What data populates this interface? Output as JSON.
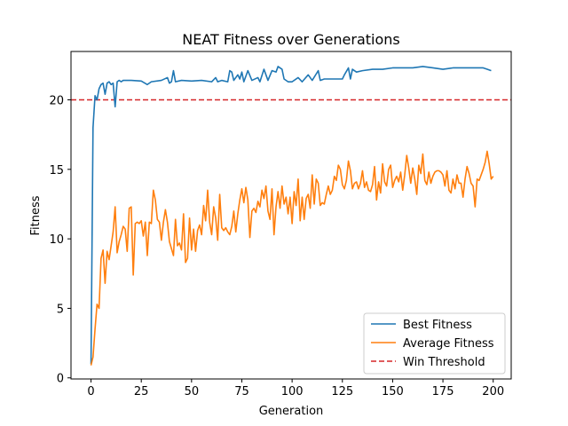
{
  "chart_data": {
    "type": "line",
    "title": "NEAT Fitness over Generations",
    "xlabel": "Generation",
    "ylabel": "Fitness",
    "xlim": [
      -9.95,
      208.95
    ],
    "ylim": [
      -0.08,
      23.48
    ],
    "xticks": [
      0,
      25,
      50,
      75,
      100,
      125,
      150,
      175,
      200
    ],
    "yticks": [
      0,
      5,
      10,
      15,
      20
    ],
    "grid": false,
    "legend_position": "lower-right",
    "threshold": {
      "name": "Win Threshold",
      "value": 20,
      "color": "#d62728",
      "style": "dashed"
    },
    "series": [
      {
        "name": "Best Fitness",
        "color": "#1f77b4",
        "keypoints": [
          [
            0,
            1.0
          ],
          [
            1,
            18.0
          ],
          [
            2,
            20.3
          ],
          [
            3,
            20.0
          ],
          [
            4,
            20.8
          ],
          [
            5,
            21.1
          ],
          [
            6,
            21.2
          ],
          [
            7,
            20.4
          ],
          [
            8,
            21.2
          ],
          [
            9,
            21.3
          ],
          [
            10,
            21.1
          ],
          [
            11,
            21.2
          ],
          [
            12,
            19.5
          ],
          [
            13,
            21.3
          ],
          [
            14,
            21.4
          ],
          [
            15,
            21.3
          ],
          [
            16,
            21.4
          ],
          [
            20,
            21.4
          ],
          [
            25,
            21.35
          ],
          [
            28,
            21.1
          ],
          [
            30,
            21.3
          ],
          [
            35,
            21.4
          ],
          [
            38,
            21.6
          ],
          [
            39,
            21.2
          ],
          [
            40,
            21.3
          ],
          [
            41,
            22.1
          ],
          [
            42,
            21.3
          ],
          [
            45,
            21.4
          ],
          [
            50,
            21.35
          ],
          [
            55,
            21.4
          ],
          [
            60,
            21.3
          ],
          [
            62,
            21.6
          ],
          [
            63,
            21.3
          ],
          [
            65,
            21.4
          ],
          [
            68,
            21.3
          ],
          [
            69,
            22.1
          ],
          [
            70,
            22.0
          ],
          [
            71,
            21.4
          ],
          [
            73,
            21.8
          ],
          [
            74,
            21.5
          ],
          [
            75,
            22.0
          ],
          [
            76,
            21.3
          ],
          [
            78,
            22.1
          ],
          [
            80,
            21.4
          ],
          [
            83,
            21.6
          ],
          [
            84,
            21.3
          ],
          [
            86,
            22.2
          ],
          [
            88,
            21.4
          ],
          [
            90,
            22.1
          ],
          [
            92,
            22.0
          ],
          [
            93,
            22.4
          ],
          [
            95,
            22.2
          ],
          [
            96,
            21.5
          ],
          [
            98,
            21.3
          ],
          [
            100,
            21.3
          ],
          [
            103,
            21.6
          ],
          [
            105,
            21.3
          ],
          [
            108,
            21.8
          ],
          [
            110,
            21.4
          ],
          [
            113,
            22.1
          ],
          [
            114,
            21.4
          ],
          [
            116,
            21.5
          ],
          [
            120,
            21.5
          ],
          [
            125,
            21.5
          ],
          [
            126,
            21.8
          ],
          [
            128,
            22.3
          ],
          [
            129,
            21.5
          ],
          [
            130,
            22.2
          ],
          [
            132,
            22.0
          ],
          [
            135,
            22.1
          ],
          [
            140,
            22.2
          ],
          [
            145,
            22.2
          ],
          [
            150,
            22.3
          ],
          [
            155,
            22.3
          ],
          [
            160,
            22.3
          ],
          [
            165,
            22.4
          ],
          [
            170,
            22.3
          ],
          [
            175,
            22.2
          ],
          [
            180,
            22.3
          ],
          [
            185,
            22.3
          ],
          [
            190,
            22.3
          ],
          [
            195,
            22.3
          ],
          [
            197,
            22.2
          ],
          [
            199,
            22.1
          ]
        ]
      },
      {
        "name": "Average Fitness",
        "color": "#ff7f0e",
        "keypoints": [
          [
            0,
            0.9
          ],
          [
            1,
            1.5
          ],
          [
            2,
            3.5
          ],
          [
            3,
            5.3
          ],
          [
            4,
            5.0
          ],
          [
            5,
            8.6
          ],
          [
            6,
            9.2
          ],
          [
            7,
            6.8
          ],
          [
            8,
            9.1
          ],
          [
            9,
            8.5
          ],
          [
            10,
            9.5
          ],
          [
            11,
            10.5
          ],
          [
            12,
            12.3
          ],
          [
            13,
            9.0
          ],
          [
            14,
            9.8
          ],
          [
            15,
            10.3
          ],
          [
            16,
            10.9
          ],
          [
            17,
            10.7
          ],
          [
            18,
            9.1
          ],
          [
            19,
            12.2
          ],
          [
            20,
            12.3
          ],
          [
            21,
            7.4
          ],
          [
            22,
            11.1
          ],
          [
            23,
            11.2
          ],
          [
            24,
            11.1
          ],
          [
            25,
            11.3
          ],
          [
            26,
            10.2
          ],
          [
            27,
            11.2
          ],
          [
            28,
            8.8
          ],
          [
            29,
            11.2
          ],
          [
            30,
            11.1
          ],
          [
            31,
            13.5
          ],
          [
            32,
            12.8
          ],
          [
            33,
            11.4
          ],
          [
            34,
            11.2
          ],
          [
            35,
            9.9
          ],
          [
            36,
            11.2
          ],
          [
            37,
            12.1
          ],
          [
            38,
            11.2
          ],
          [
            39,
            9.8
          ],
          [
            40,
            9.3
          ],
          [
            41,
            8.8
          ],
          [
            42,
            11.4
          ],
          [
            43,
            9.5
          ],
          [
            44,
            9.7
          ],
          [
            45,
            9.2
          ],
          [
            46,
            11.8
          ],
          [
            47,
            8.3
          ],
          [
            48,
            8.6
          ],
          [
            49,
            11.5
          ],
          [
            50,
            9.2
          ],
          [
            51,
            10.7
          ],
          [
            52,
            9.1
          ],
          [
            53,
            10.6
          ],
          [
            54,
            11.0
          ],
          [
            55,
            10.3
          ],
          [
            56,
            12.4
          ],
          [
            57,
            11.3
          ],
          [
            58,
            13.5
          ],
          [
            59,
            11.2
          ],
          [
            60,
            10.3
          ],
          [
            61,
            12.3
          ],
          [
            62,
            11.5
          ],
          [
            63,
            9.9
          ],
          [
            64,
            13.2
          ],
          [
            65,
            10.8
          ],
          [
            66,
            10.6
          ],
          [
            67,
            10.8
          ],
          [
            68,
            10.5
          ],
          [
            69,
            10.3
          ],
          [
            70,
            10.9
          ],
          [
            71,
            12.0
          ],
          [
            72,
            10.5
          ],
          [
            73,
            11.8
          ],
          [
            74,
            12.8
          ],
          [
            75,
            13.6
          ],
          [
            76,
            12.6
          ],
          [
            77,
            13.7
          ],
          [
            78,
            12.8
          ],
          [
            79,
            10.1
          ],
          [
            80,
            12.0
          ],
          [
            81,
            12.2
          ],
          [
            82,
            11.9
          ],
          [
            83,
            12.7
          ],
          [
            84,
            12.3
          ],
          [
            85,
            13.5
          ],
          [
            86,
            12.9
          ],
          [
            87,
            13.8
          ],
          [
            88,
            12.0
          ],
          [
            89,
            11.4
          ],
          [
            90,
            13.6
          ],
          [
            91,
            10.3
          ],
          [
            92,
            12.3
          ],
          [
            93,
            13.4
          ],
          [
            94,
            12.2
          ],
          [
            95,
            13.8
          ],
          [
            96,
            12.5
          ],
          [
            97,
            13.0
          ],
          [
            98,
            11.8
          ],
          [
            99,
            13.0
          ],
          [
            100,
            11.1
          ],
          [
            101,
            13.4
          ],
          [
            102,
            12.4
          ],
          [
            103,
            14.3
          ],
          [
            104,
            11.3
          ],
          [
            105,
            13.0
          ],
          [
            106,
            11.4
          ],
          [
            107,
            12.9
          ],
          [
            108,
            13.2
          ],
          [
            109,
            12.2
          ],
          [
            110,
            14.6
          ],
          [
            111,
            12.5
          ],
          [
            112,
            14.3
          ],
          [
            113,
            14.0
          ],
          [
            114,
            12.4
          ],
          [
            115,
            12.6
          ],
          [
            116,
            12.5
          ],
          [
            117,
            13.2
          ],
          [
            118,
            13.8
          ],
          [
            119,
            13.2
          ],
          [
            120,
            13.5
          ],
          [
            121,
            14.5
          ],
          [
            122,
            14.2
          ],
          [
            123,
            15.3
          ],
          [
            124,
            15.0
          ],
          [
            125,
            13.9
          ],
          [
            126,
            13.6
          ],
          [
            127,
            14.2
          ],
          [
            128,
            15.6
          ],
          [
            129,
            14.9
          ],
          [
            130,
            13.6
          ],
          [
            131,
            14.0
          ],
          [
            132,
            14.1
          ],
          [
            133,
            13.6
          ],
          [
            134,
            14.0
          ],
          [
            135,
            14.9
          ],
          [
            136,
            13.7
          ],
          [
            137,
            14.1
          ],
          [
            138,
            13.5
          ],
          [
            139,
            13.4
          ],
          [
            140,
            13.9
          ],
          [
            141,
            15.2
          ],
          [
            142,
            12.8
          ],
          [
            143,
            14.1
          ],
          [
            144,
            13.3
          ],
          [
            145,
            15.4
          ],
          [
            146,
            14.1
          ],
          [
            147,
            13.8
          ],
          [
            148,
            15.0
          ],
          [
            149,
            15.3
          ],
          [
            150,
            13.7
          ],
          [
            151,
            14.2
          ],
          [
            152,
            14.5
          ],
          [
            153,
            14.1
          ],
          [
            154,
            14.8
          ],
          [
            155,
            13.5
          ],
          [
            156,
            14.6
          ],
          [
            157,
            16.0
          ],
          [
            158,
            15.1
          ],
          [
            159,
            14.0
          ],
          [
            160,
            15.1
          ],
          [
            161,
            14.3
          ],
          [
            162,
            13.2
          ],
          [
            163,
            15.3
          ],
          [
            164,
            14.7
          ],
          [
            165,
            16.1
          ],
          [
            166,
            14.2
          ],
          [
            167,
            13.9
          ],
          [
            168,
            14.8
          ],
          [
            169,
            14.0
          ],
          [
            170,
            14.5
          ],
          [
            171,
            14.8
          ],
          [
            172,
            14.9
          ],
          [
            173,
            14.9
          ],
          [
            174,
            14.8
          ],
          [
            175,
            14.6
          ],
          [
            176,
            13.8
          ],
          [
            177,
            14.9
          ],
          [
            178,
            13.5
          ],
          [
            179,
            13.3
          ],
          [
            180,
            14.3
          ],
          [
            181,
            13.6
          ],
          [
            182,
            14.6
          ],
          [
            183,
            14.0
          ],
          [
            184,
            14.0
          ],
          [
            185,
            13.0
          ],
          [
            186,
            14.3
          ],
          [
            187,
            15.2
          ],
          [
            188,
            14.7
          ],
          [
            189,
            14.0
          ],
          [
            190,
            13.8
          ],
          [
            191,
            12.3
          ],
          [
            192,
            14.3
          ],
          [
            193,
            14.2
          ],
          [
            194,
            14.6
          ],
          [
            195,
            15.0
          ],
          [
            196,
            15.5
          ],
          [
            197,
            16.3
          ],
          [
            198,
            15.4
          ],
          [
            199,
            14.3
          ],
          [
            200,
            14.5
          ]
        ]
      }
    ]
  }
}
